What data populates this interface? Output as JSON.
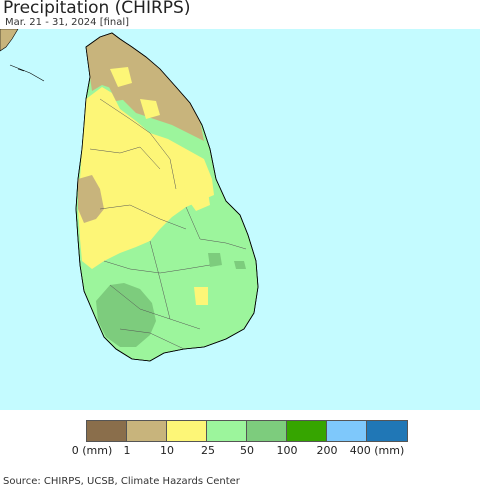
{
  "title": "Precipitation (CHIRPS)",
  "subtitle": "Mar. 21 - 31, 2024 [final]",
  "colors": {
    "ocean": "#c4fbff",
    "c0": "#8a6e4b",
    "c1": "#c8b47c",
    "c10": "#fdf677",
    "c25": "#9cf59c",
    "c50": "#7dcc7d",
    "c100": "#36a500",
    "c200": "#7ec8fb",
    "c400": "#2077b6"
  },
  "legend": {
    "colors": [
      "#8a6e4b",
      "#c8b47c",
      "#fdf677",
      "#9cf59c",
      "#7dcc7d",
      "#36a500",
      "#7ec8fb",
      "#2077b6"
    ],
    "labels": [
      "0 (mm)",
      "1",
      "10",
      "25",
      "50",
      "100",
      "200",
      "400 (mm)"
    ]
  },
  "source": "Source: CHIRPS, UCSB, Climate Hazards Center"
}
